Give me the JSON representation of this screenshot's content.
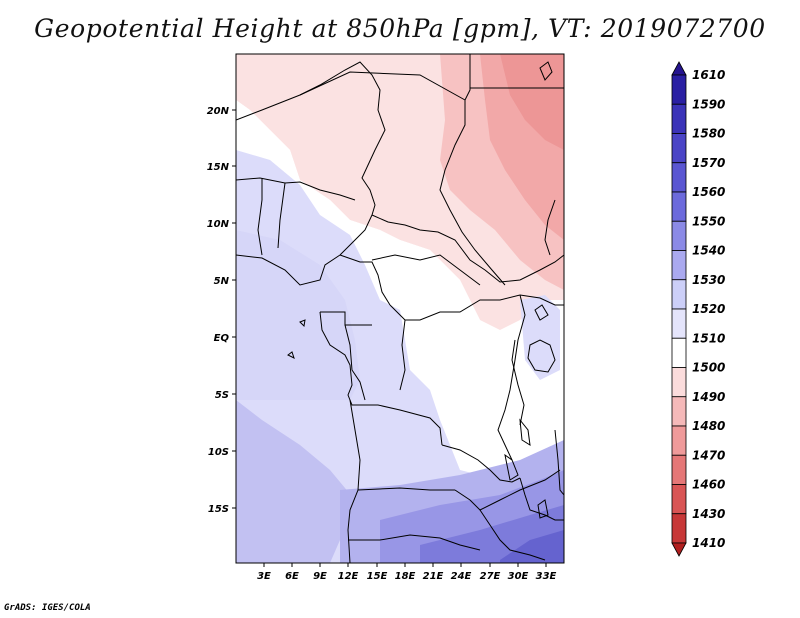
{
  "map": {
    "title": "Geopotential Height at 850hPa [gpm], VT: 2019072700",
    "credit": "GrADS: IGES/COLA",
    "lat_labels": [
      "20N",
      "15N",
      "10N",
      "5N",
      "EQ",
      "5S",
      "10S",
      "15S"
    ],
    "lon_labels": [
      "3E",
      "6E",
      "9E",
      "12E",
      "15E",
      "18E",
      "21E",
      "24E",
      "27E",
      "30E",
      "33E"
    ],
    "colorbar": {
      "labels": [
        "1610",
        "1590",
        "1580",
        "1570",
        "1560",
        "1550",
        "1540",
        "1530",
        "1520",
        "1510",
        "1500",
        "1490",
        "1480",
        "1470",
        "1460",
        "1430",
        "1410"
      ],
      "colors": [
        "#25148f",
        "#2a1fa3",
        "#3b33b8",
        "#4a44c6",
        "#5a56d2",
        "#6c6adc",
        "#8b8ae6",
        "#aaa9ef",
        "#cccff8",
        "#e4e4fb",
        "#ffffff",
        "#fbdcdc",
        "#f5b9b9",
        "#ef9a9a",
        "#e57777",
        "#d95555",
        "#c73838",
        "#b01f1f"
      ]
    }
  }
}
